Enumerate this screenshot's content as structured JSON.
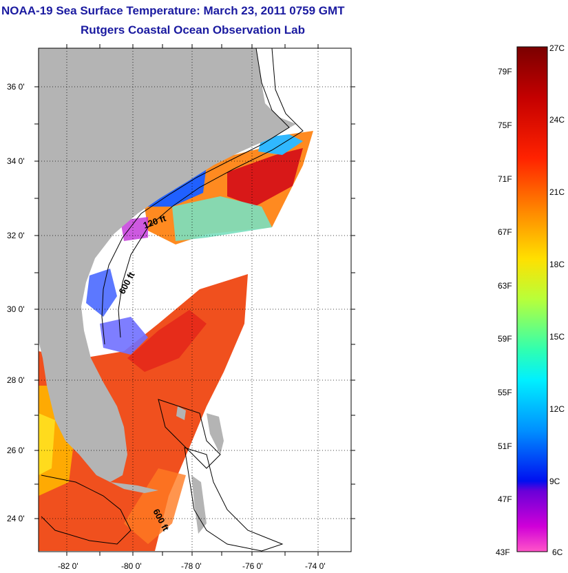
{
  "title": "NOAA-19 Sea Surface Temperature:  March 23, 2011 0759 GMT",
  "subtitle": "Rutgers Coastal Ocean Observation Lab",
  "map": {
    "lat_labels": [
      "36 0'",
      "34 0'",
      "32 0'",
      "30 0'",
      "28 0'",
      "26 0'",
      "24 0'"
    ],
    "lon_labels": [
      "-82 0'",
      "-80 0'",
      "-78 0'",
      "-76 0'",
      "-74 0'"
    ],
    "contour_labels": [
      "120 ft",
      "600 ft",
      "600 ft"
    ],
    "land_color": "#b4b4b4"
  },
  "colorbar": {
    "fahrenheit_labels": [
      "79F",
      "75F",
      "71F",
      "67F",
      "63F",
      "59F",
      "55F",
      "51F",
      "47F",
      "43F"
    ],
    "celsius_labels": [
      "27C",
      "24C",
      "21C",
      "18C",
      "15C",
      "12C",
      "9C",
      "6C"
    ]
  }
}
